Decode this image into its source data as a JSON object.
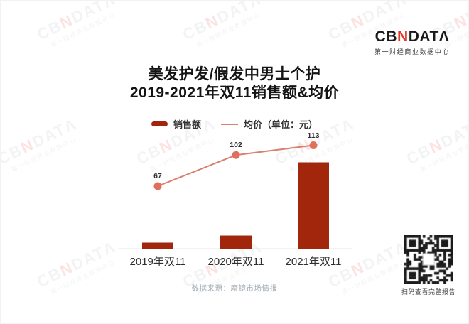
{
  "logo": {
    "prefix": "CB",
    "accent_letter": "N",
    "suffix": "DATΛ",
    "subtitle": "第一财经商业数据中心",
    "accent_color": "#E23B2E",
    "text_color": "#1A1A1A"
  },
  "title": {
    "line1": "美发护发/假发中男士个护",
    "line2": "2019-2021年双11销售额&均价"
  },
  "legend": {
    "bar_label": "销售额",
    "line_label": "均价（单位：元）"
  },
  "chart_data": {
    "type": "bar",
    "secondary_type": "line",
    "title": "美发护发/假发中男士个护 2019-2021年双11销售额&均价",
    "categories": [
      "2019年双11",
      "2020年双11",
      "2021年双11"
    ],
    "series": [
      {
        "name": "销售额",
        "type": "bar",
        "axis": "unlabeled",
        "relative_heights": [
          0.07,
          0.152,
          1.0
        ],
        "color": "#A2260B"
      },
      {
        "name": "均价（单位：元）",
        "type": "line",
        "values": [
          67,
          102,
          113
        ],
        "point_labels": [
          "67",
          "102",
          "113"
        ],
        "color": "#D98070",
        "point_color": "#E0705E"
      }
    ],
    "xlabel": "",
    "ylabel": "",
    "grid": "off",
    "legend_position": "top",
    "baseline_color": "#E4E4E4"
  },
  "footer": {
    "source": "数据来源：魔镜市场情报"
  },
  "qr": {
    "caption": "扫码查看完整报告"
  },
  "watermark": {
    "line1_prefix": "CB",
    "line1_accent": "N",
    "line1_suffix": "DATΛ",
    "line2": "第一财经商业数据中心"
  }
}
